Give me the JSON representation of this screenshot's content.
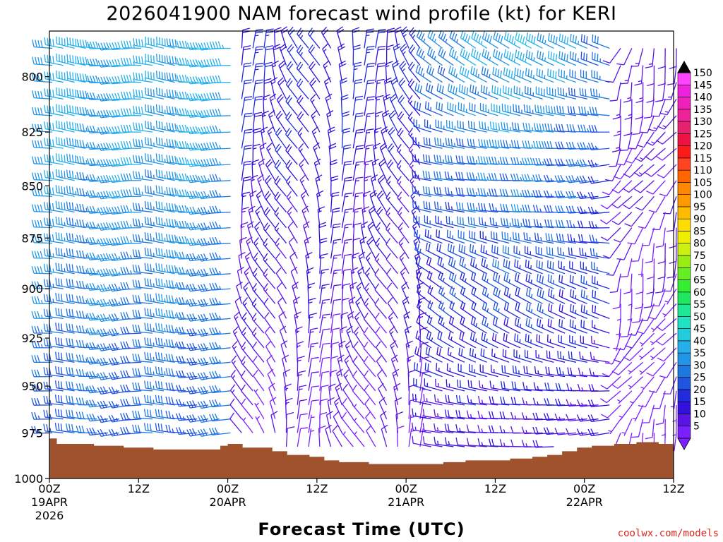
{
  "chart_data": {
    "type": "wind-profile",
    "title": "2026041900 NAM forecast wind profile (kt) for KERI",
    "xlabel": "Forecast Time (UTC)",
    "ylabel": "",
    "y_range_hpa": [
      1000,
      780
    ],
    "y_ticks": [
      800,
      825,
      850,
      875,
      900,
      925,
      950,
      975,
      1000
    ],
    "x_range_hours": [
      0,
      84
    ],
    "x_ticks": [
      {
        "hour": 0,
        "top": "00Z",
        "mid": "19APR",
        "bottom": "2026"
      },
      {
        "hour": 12,
        "top": "12Z",
        "mid": "",
        "bottom": ""
      },
      {
        "hour": 24,
        "top": "00Z",
        "mid": "20APR",
        "bottom": ""
      },
      {
        "hour": 36,
        "top": "12Z",
        "mid": "",
        "bottom": ""
      },
      {
        "hour": 48,
        "top": "00Z",
        "mid": "21APR",
        "bottom": ""
      },
      {
        "hour": 60,
        "top": "12Z",
        "mid": "",
        "bottom": ""
      },
      {
        "hour": 72,
        "top": "00Z",
        "mid": "22APR",
        "bottom": ""
      },
      {
        "hour": 84,
        "top": "12Z",
        "mid": "",
        "bottom": ""
      }
    ],
    "colorbar": {
      "units": "kt",
      "levels": [
        5,
        10,
        15,
        20,
        25,
        30,
        35,
        40,
        45,
        50,
        55,
        60,
        65,
        70,
        75,
        80,
        85,
        90,
        95,
        100,
        105,
        110,
        115,
        120,
        125,
        130,
        135,
        140,
        145,
        150
      ],
      "colors": [
        "#7a1fff",
        "#5a14e6",
        "#3311dd",
        "#1f2bdc",
        "#1f55e0",
        "#1f77e0",
        "#2295e6",
        "#25b0ec",
        "#22ccdd",
        "#1fe3c3",
        "#1fe894",
        "#1fe85e",
        "#33ee33",
        "#66ee22",
        "#99ee11",
        "#ccf011",
        "#eeee00",
        "#ffdd00",
        "#ffbb00",
        "#ff9900",
        "#ff8800",
        "#ff6600",
        "#ff4422",
        "#ff1a1a",
        "#ee1144",
        "#e6226e",
        "#ee2299",
        "#ee22bb",
        "#ee22dd",
        "#ff44ff"
      ]
    },
    "surface_pressure_hpa": [
      {
        "hour": 0,
        "p": 978
      },
      {
        "hour": 1,
        "p": 981
      },
      {
        "hour": 6,
        "p": 982
      },
      {
        "hour": 10,
        "p": 983
      },
      {
        "hour": 14,
        "p": 984
      },
      {
        "hour": 22,
        "p": 984
      },
      {
        "hour": 23,
        "p": 982
      },
      {
        "hour": 24,
        "p": 981
      },
      {
        "hour": 26,
        "p": 983
      },
      {
        "hour": 30,
        "p": 985
      },
      {
        "hour": 32,
        "p": 987
      },
      {
        "hour": 35,
        "p": 988
      },
      {
        "hour": 37,
        "p": 990
      },
      {
        "hour": 39,
        "p": 991
      },
      {
        "hour": 43,
        "p": 992
      },
      {
        "hour": 50,
        "p": 992
      },
      {
        "hour": 53,
        "p": 991
      },
      {
        "hour": 56,
        "p": 990
      },
      {
        "hour": 59,
        "p": 990
      },
      {
        "hour": 62,
        "p": 989
      },
      {
        "hour": 65,
        "p": 988
      },
      {
        "hour": 67,
        "p": 987
      },
      {
        "hour": 69,
        "p": 985
      },
      {
        "hour": 71,
        "p": 983
      },
      {
        "hour": 73,
        "p": 982
      },
      {
        "hour": 76,
        "p": 981
      },
      {
        "hour": 79,
        "p": 980
      },
      {
        "hour": 82,
        "p": 981
      },
      {
        "hour": 84,
        "p": 982
      }
    ],
    "wind_regimes": [
      {
        "start_hour": 0,
        "end_hour": 24,
        "description": "westerly",
        "speed_kt_low": 25,
        "speed_kt_high": 45
      },
      {
        "start_hour": 25,
        "end_hour": 50,
        "description": "northerly to northeasterly",
        "speed_kt_low": 5,
        "speed_kt_high": 25
      },
      {
        "start_hour": 50,
        "end_hour": 75,
        "description": "westerly to northwesterly",
        "speed_kt_low": 10,
        "speed_kt_high": 45
      },
      {
        "start_hour": 76,
        "end_hour": 84,
        "description": "southerly to southwesterly",
        "speed_kt_low": 5,
        "speed_kt_high": 15
      }
    ]
  },
  "credit": "coolwx.com/models"
}
